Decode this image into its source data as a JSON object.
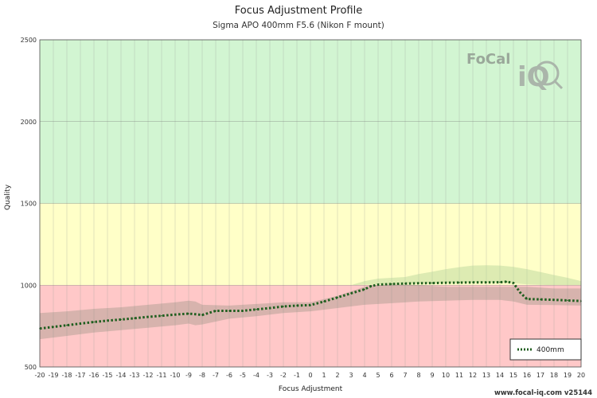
{
  "header": {
    "title": "Focus Adjustment Profile",
    "subtitle": "Sigma APO 400mm F5.6 (Nikon F mount)"
  },
  "footer": {
    "text": "www.focal-iq.com  v25144"
  },
  "logo": {
    "text_main": "FoCal",
    "text_iq": "iQ",
    "icon": "magnifier-icon"
  },
  "chart_data": {
    "type": "line",
    "title": "Focus Adjustment Profile",
    "subtitle": "Sigma APO 400mm F5.6 (Nikon F mount)",
    "xlabel": "Focus Adjustment",
    "ylabel": "Quality",
    "xlim": [
      -20,
      20
    ],
    "ylim": [
      500,
      2500
    ],
    "x_ticks": [
      -20,
      -19,
      -18,
      -17,
      -16,
      -15,
      -14,
      -13,
      -12,
      -11,
      -10,
      -9,
      -8,
      -7,
      -6,
      -5,
      -4,
      -3,
      -2,
      -1,
      0,
      1,
      2,
      3,
      4,
      5,
      6,
      7,
      8,
      9,
      10,
      11,
      12,
      13,
      14,
      15,
      16,
      17,
      18,
      19,
      20
    ],
    "y_ticks": [
      500,
      1000,
      1500,
      2000,
      2500
    ],
    "grid": true,
    "legend_position": "bottom-right",
    "zones": [
      {
        "from": 500,
        "to": 1000,
        "color": "#ffc8c8"
      },
      {
        "from": 1000,
        "to": 1500,
        "color": "#ffffc8"
      },
      {
        "from": 1500,
        "to": 2500,
        "color": "#d2f5d2"
      }
    ],
    "colors": {
      "series": "#1f5e1f",
      "band": "#8c8c7a",
      "upper_band": "#b4d296"
    },
    "series": [
      {
        "name": "400mm",
        "style": "dotted",
        "x": [
          -20,
          -19,
          -18,
          -17,
          -16,
          -15,
          -14,
          -13,
          -12,
          -11,
          -10,
          -9,
          -8.5,
          -8,
          -7,
          -6,
          -5,
          -4,
          -3,
          -2,
          -1,
          0,
          1,
          2,
          3,
          4,
          4.5,
          5,
          6,
          7,
          8,
          9,
          10,
          11,
          12,
          13,
          14,
          14.5,
          15,
          15.5,
          16,
          17,
          18,
          19,
          20
        ],
        "values": [
          735,
          745,
          755,
          765,
          775,
          783,
          790,
          798,
          806,
          813,
          820,
          826,
          822,
          818,
          843,
          843,
          843,
          852,
          860,
          870,
          875,
          878,
          900,
          925,
          950,
          975,
          995,
          1003,
          1007,
          1010,
          1012,
          1013,
          1015,
          1016,
          1017,
          1017,
          1018,
          1021,
          1013,
          955,
          915,
          913,
          910,
          907,
          903
        ]
      }
    ],
    "band": {
      "x": [
        -20,
        -18,
        -16,
        -14,
        -12,
        -10,
        -9,
        -8.5,
        -8,
        -6,
        -4,
        -2,
        0,
        2,
        4,
        6,
        8,
        10,
        12,
        14,
        15,
        16,
        18,
        20
      ],
      "upper": [
        830,
        840,
        855,
        865,
        880,
        895,
        905,
        900,
        880,
        875,
        885,
        895,
        895,
        935,
        990,
        1010,
        1000,
        990,
        990,
        990,
        990,
        990,
        980,
        980
      ],
      "lower": [
        670,
        690,
        710,
        725,
        740,
        755,
        765,
        755,
        760,
        795,
        810,
        830,
        840,
        860,
        880,
        890,
        900,
        905,
        910,
        910,
        900,
        880,
        878,
        875
      ]
    },
    "upper_band": {
      "x": [
        3,
        4,
        5,
        6,
        7,
        8,
        9,
        10,
        11,
        12,
        13,
        14,
        15,
        16,
        17,
        18,
        19,
        20
      ],
      "upper": [
        1000,
        1025,
        1040,
        1045,
        1050,
        1068,
        1082,
        1098,
        1110,
        1120,
        1122,
        1120,
        1112,
        1098,
        1080,
        1062,
        1045,
        1025
      ],
      "lower": [
        1000,
        1003,
        1005,
        1007,
        1010,
        1012,
        1013,
        1015,
        1016,
        1017,
        1017,
        1016,
        1012,
        1005,
        1002,
        1000,
        1000,
        1000
      ]
    }
  }
}
